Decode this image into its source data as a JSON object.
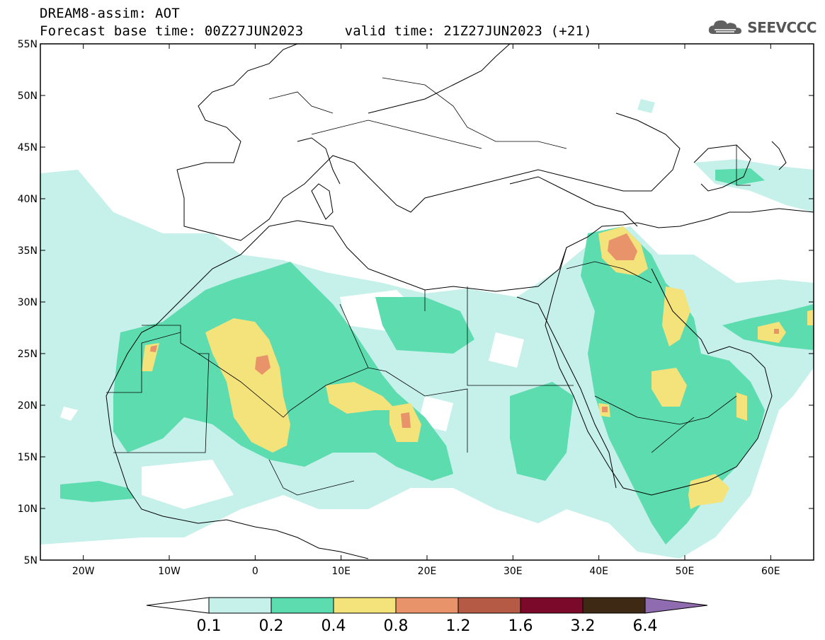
{
  "header": {
    "title": "DREAM8-assim: AOT",
    "base_time_label": "Forecast base time: 00Z27JUN2023",
    "valid_time_label": "valid time: 21Z27JUN2023 (+21)",
    "brand": "SEEVCCC"
  },
  "map": {
    "lon_range": [
      -25,
      65
    ],
    "lat_range": [
      5,
      55
    ],
    "lat_ticks": [
      "5N",
      "10N",
      "15N",
      "20N",
      "25N",
      "30N",
      "35N",
      "40N",
      "45N",
      "50N",
      "55N"
    ],
    "lon_ticks": [
      "20W",
      "10W",
      "0",
      "10E",
      "20E",
      "30E",
      "40E",
      "50E",
      "60E"
    ]
  },
  "colorbar": {
    "levels": [
      "0.1",
      "0.2",
      "0.4",
      "0.8",
      "1.2",
      "1.6",
      "3.2",
      "6.4"
    ],
    "colors": [
      "#c6f0ea",
      "#5ddcb0",
      "#f4e27a",
      "#e8936a",
      "#b55a44",
      "#7b0a2a",
      "#3e2a14",
      "#8f6bb0"
    ],
    "under_color": "#ffffff"
  }
}
